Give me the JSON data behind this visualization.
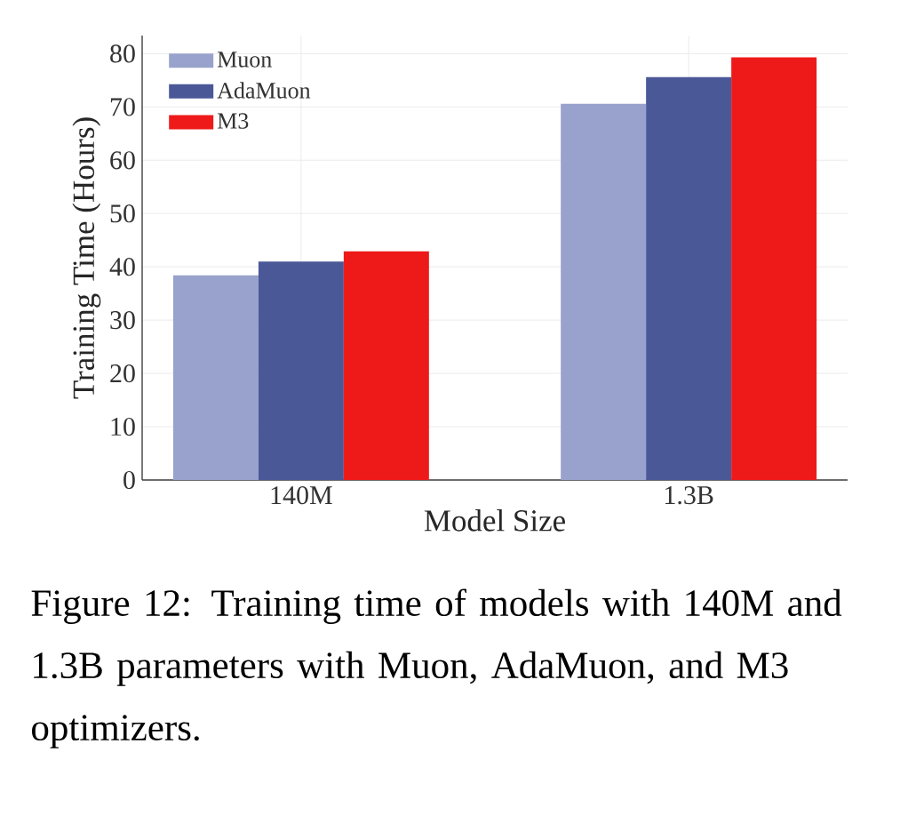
{
  "chart_data": {
    "type": "bar",
    "xlabel": "Model Size",
    "ylabel": "Training Time (Hours)",
    "categories": [
      "140M",
      "1.3B"
    ],
    "series": [
      {
        "name": "Muon",
        "color": "#98a2cc",
        "values": [
          38.4,
          70.6
        ]
      },
      {
        "name": "AdaMuon",
        "color": "#4b5898",
        "values": [
          41.0,
          75.6
        ]
      },
      {
        "name": "M3",
        "color": "#ee1a1a",
        "values": [
          42.9,
          79.3
        ]
      }
    ],
    "ylim": [
      0,
      83.4
    ],
    "yticks": [
      0,
      10,
      20,
      30,
      40,
      50,
      60,
      70,
      80
    ],
    "grid": true,
    "legend": "top left",
    "annotations": [
      "Figure 12: Training time of models with 140M and 1.3B parameters with Muon, AdaMuon, and M3 optimizers."
    ]
  }
}
